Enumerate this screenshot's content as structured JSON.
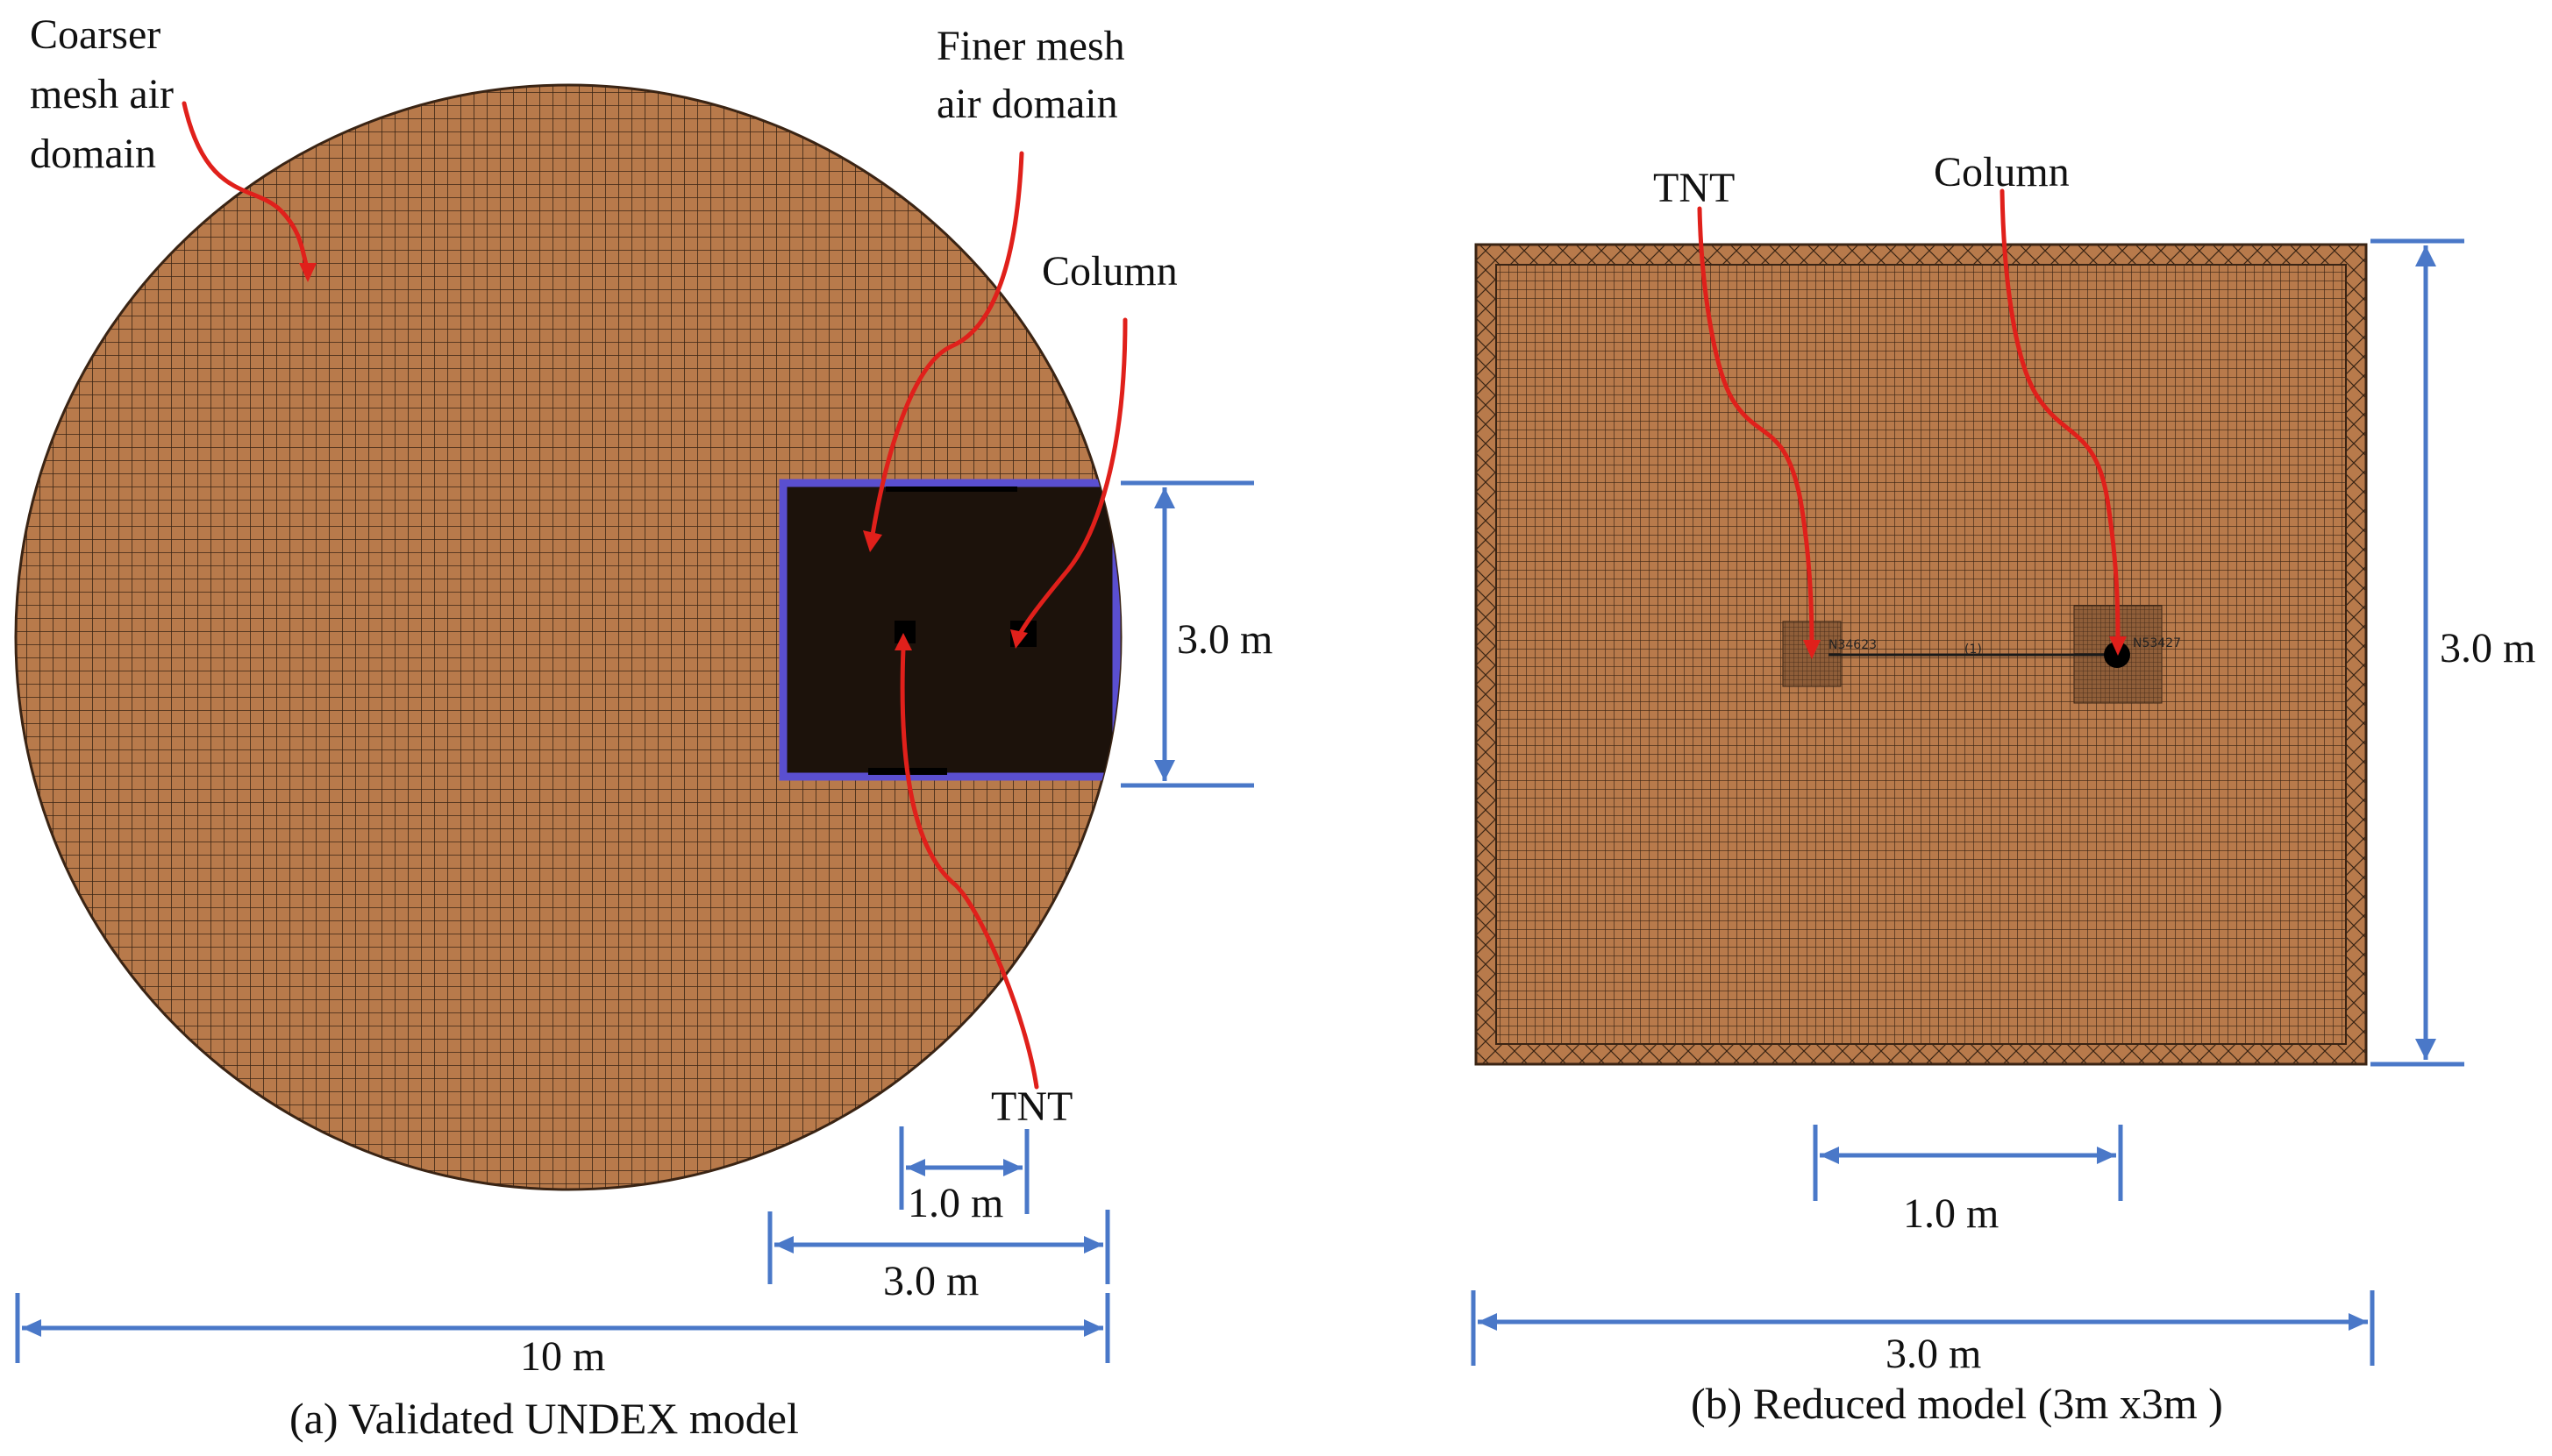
{
  "panel_a": {
    "caption": "(a) Validated UNDEX model",
    "labels": {
      "coarser": [
        "Coarser",
        "mesh air",
        "domain"
      ],
      "finer": [
        "Finer mesh",
        "air domain"
      ],
      "column": "Column",
      "tnt": "TNT"
    },
    "dimensions": {
      "box_height": "3.0 m",
      "spacing": "1.0 m",
      "box_width": "3.0 m",
      "overall": "10 m"
    }
  },
  "panel_b": {
    "caption": "(b) Reduced model (3m x3m )",
    "labels": {
      "tnt": "TNT",
      "column": "Column"
    },
    "node_labels": {
      "tnt_node": "N34623",
      "element": "(1)",
      "column_node": "N53427"
    },
    "dimensions": {
      "height": "3.0 m",
      "spacing": "1.0 m",
      "width": "3.0 m"
    }
  },
  "colors": {
    "mesh_fill": "#b87a4b",
    "mesh_line": "#3a2414",
    "fine_region": "#1c120b",
    "dimension": "#4a78c8",
    "arrow": "#e0201b",
    "region_border": "#5a4fd0"
  }
}
